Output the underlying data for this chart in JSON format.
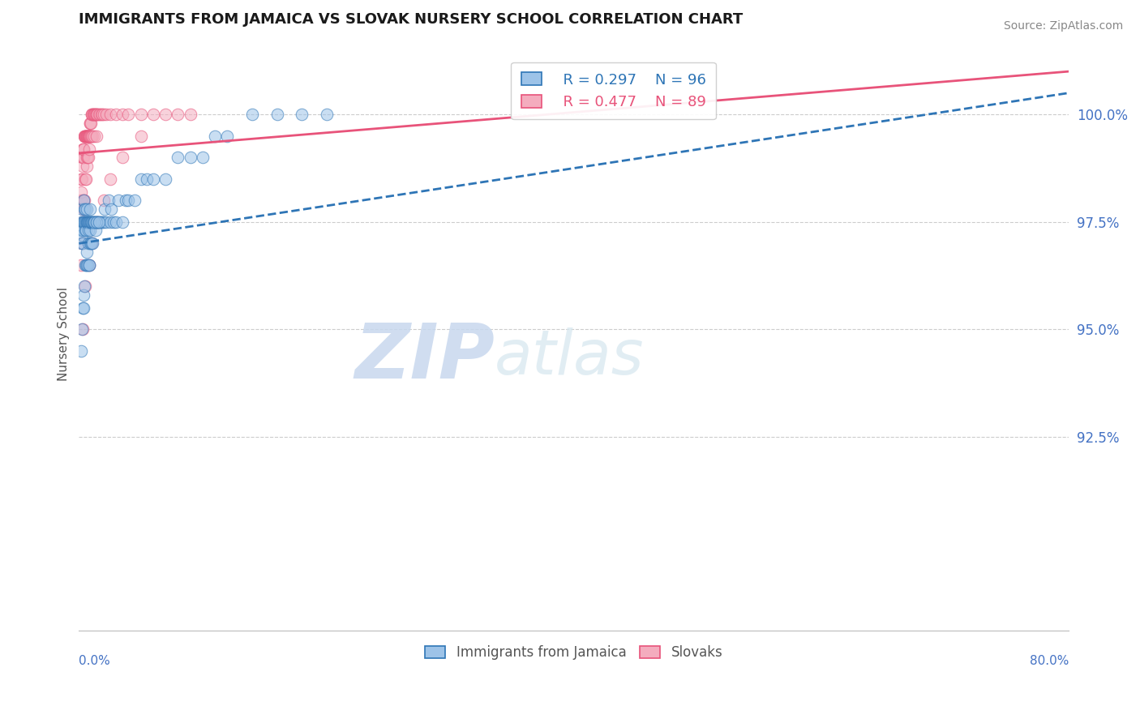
{
  "title": "IMMIGRANTS FROM JAMAICA VS SLOVAK NURSERY SCHOOL CORRELATION CHART",
  "ylabel": "Nursery School",
  "source": "Source: ZipAtlas.com",
  "xmin": 0.0,
  "xmax": 80.0,
  "ymin": 88.0,
  "ymax": 101.8,
  "legend_R1": "R = 0.297",
  "legend_N1": "N = 96",
  "legend_R2": "R = 0.477",
  "legend_N2": "N = 89",
  "legend_label1": "Immigrants from Jamaica",
  "legend_label2": "Slovaks",
  "color_blue": "#9DC3E8",
  "color_pink": "#F4ACBE",
  "color_blue_line": "#2E75B6",
  "color_pink_line": "#E8537A",
  "color_text_blue": "#4472C4",
  "color_axis": "#5B9BD5",
  "watermark_zip": "ZIP",
  "watermark_atlas": "atlas",
  "ytick_vals": [
    92.5,
    95.0,
    97.5,
    100.0
  ],
  "ytick_labels": [
    "92.5%",
    "95.0%",
    "97.5%",
    "100.0%"
  ],
  "blue_line_x0": 0.0,
  "blue_line_y0": 97.0,
  "blue_line_x1": 80.0,
  "blue_line_y1": 100.5,
  "pink_line_x0": 0.0,
  "pink_line_y0": 99.1,
  "pink_line_x1": 80.0,
  "pink_line_y1": 101.0,
  "blue_dots": {
    "x": [
      0.15,
      0.18,
      0.2,
      0.22,
      0.25,
      0.28,
      0.3,
      0.32,
      0.35,
      0.38,
      0.4,
      0.42,
      0.45,
      0.48,
      0.5,
      0.52,
      0.55,
      0.58,
      0.6,
      0.62,
      0.65,
      0.68,
      0.7,
      0.72,
      0.75,
      0.78,
      0.8,
      0.82,
      0.85,
      0.88,
      0.9,
      0.92,
      0.95,
      0.98,
      1.0,
      1.05,
      1.1,
      1.15,
      1.2,
      1.25,
      1.3,
      1.35,
      1.4,
      1.45,
      1.5,
      1.6,
      1.7,
      1.8,
      1.9,
      2.0,
      2.1,
      2.2,
      2.4,
      2.5,
      2.6,
      2.8,
      3.0,
      3.2,
      3.5,
      3.8,
      4.0,
      4.5,
      5.0,
      5.5,
      6.0,
      7.0,
      8.0,
      9.0,
      10.0,
      11.0,
      12.0,
      14.0,
      16.0,
      18.0,
      20.0,
      0.2,
      0.25,
      0.3,
      0.35,
      0.4,
      0.45,
      0.5,
      0.55,
      0.6,
      0.65,
      0.7,
      0.75,
      0.8,
      0.85,
      0.9,
      0.95,
      1.0,
      1.1,
      1.2,
      1.4,
      1.6
    ],
    "y": [
      97.3,
      97.5,
      97.0,
      97.2,
      97.8,
      97.5,
      97.0,
      97.3,
      97.5,
      98.0,
      97.5,
      97.8,
      97.5,
      97.3,
      97.5,
      97.8,
      97.5,
      97.3,
      97.5,
      97.8,
      97.5,
      97.5,
      97.5,
      97.5,
      97.3,
      97.5,
      97.5,
      97.5,
      97.5,
      97.3,
      97.5,
      97.8,
      97.5,
      97.5,
      97.5,
      97.5,
      97.5,
      97.5,
      97.5,
      97.5,
      97.5,
      97.3,
      97.5,
      97.5,
      97.5,
      97.5,
      97.5,
      97.5,
      97.5,
      97.5,
      97.8,
      97.5,
      98.0,
      97.5,
      97.8,
      97.5,
      97.5,
      98.0,
      97.5,
      98.0,
      98.0,
      98.0,
      98.5,
      98.5,
      98.5,
      98.5,
      99.0,
      99.0,
      99.0,
      99.5,
      99.5,
      100.0,
      100.0,
      100.0,
      100.0,
      94.5,
      95.0,
      95.5,
      95.8,
      95.5,
      96.0,
      96.5,
      96.5,
      96.8,
      96.5,
      96.5,
      97.0,
      96.5,
      96.5,
      97.0,
      97.0,
      97.0,
      97.0,
      97.5,
      97.5,
      97.5
    ]
  },
  "pink_dots": {
    "x": [
      0.15,
      0.18,
      0.2,
      0.22,
      0.25,
      0.28,
      0.3,
      0.32,
      0.35,
      0.38,
      0.4,
      0.42,
      0.45,
      0.48,
      0.5,
      0.52,
      0.55,
      0.58,
      0.6,
      0.62,
      0.65,
      0.68,
      0.7,
      0.72,
      0.75,
      0.78,
      0.8,
      0.82,
      0.85,
      0.88,
      0.9,
      0.92,
      0.95,
      0.98,
      1.0,
      1.05,
      1.1,
      1.15,
      1.2,
      1.25,
      1.3,
      1.35,
      1.4,
      1.45,
      1.5,
      1.6,
      1.7,
      1.8,
      1.9,
      2.0,
      2.2,
      2.5,
      3.0,
      3.5,
      4.0,
      5.0,
      6.0,
      7.0,
      8.0,
      9.0,
      0.2,
      0.25,
      0.3,
      0.35,
      0.4,
      0.45,
      0.5,
      0.55,
      0.6,
      0.65,
      0.7,
      0.75,
      0.8,
      0.85,
      0.9,
      0.95,
      1.0,
      1.1,
      1.2,
      1.4,
      0.3,
      0.5,
      0.8,
      1.0,
      1.5,
      2.0,
      2.5,
      3.5,
      5.0
    ],
    "y": [
      98.0,
      98.2,
      98.5,
      98.5,
      99.0,
      98.8,
      99.0,
      99.2,
      99.0,
      99.2,
      99.2,
      99.5,
      99.5,
      99.5,
      99.5,
      99.5,
      99.5,
      99.5,
      99.5,
      99.5,
      99.5,
      99.5,
      99.5,
      99.5,
      99.5,
      99.5,
      99.5,
      99.5,
      99.5,
      99.5,
      99.8,
      99.8,
      99.5,
      99.8,
      100.0,
      100.0,
      100.0,
      100.0,
      100.0,
      100.0,
      100.0,
      100.0,
      100.0,
      100.0,
      100.0,
      100.0,
      100.0,
      100.0,
      100.0,
      100.0,
      100.0,
      100.0,
      100.0,
      100.0,
      100.0,
      100.0,
      100.0,
      100.0,
      100.0,
      100.0,
      96.5,
      97.0,
      97.5,
      97.8,
      98.0,
      98.0,
      98.5,
      98.5,
      98.8,
      99.0,
      99.0,
      99.0,
      99.2,
      99.5,
      99.5,
      99.5,
      99.5,
      99.5,
      99.5,
      99.5,
      95.0,
      96.0,
      96.5,
      97.0,
      97.5,
      98.0,
      98.5,
      99.0,
      99.5
    ]
  }
}
